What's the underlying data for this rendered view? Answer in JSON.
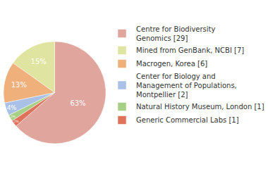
{
  "chart_data": {
    "type": "pie",
    "categories": [
      "Centre for Biodiversity\nGenomics [29]",
      "Mined from GenBank, NCBI [7]",
      "Macrogen, Korea [6]",
      "Center for Biology and\nManagement of Populations,\nMontpellier [2]",
      "Natural History Museum, London [1]",
      "Generic Commercial Labs [1]"
    ],
    "values": [
      63,
      15,
      13,
      4,
      2,
      2
    ],
    "value_labels": [
      "63%",
      "15%",
      "13%",
      "4%",
      "2%",
      "2%"
    ],
    "colors": [
      "#e0a59c",
      "#dfe4a0",
      "#efb07c",
      "#a9c1e6",
      "#a7cf86",
      "#e0725c"
    ],
    "data_labels": true,
    "legend": "upper right"
  }
}
